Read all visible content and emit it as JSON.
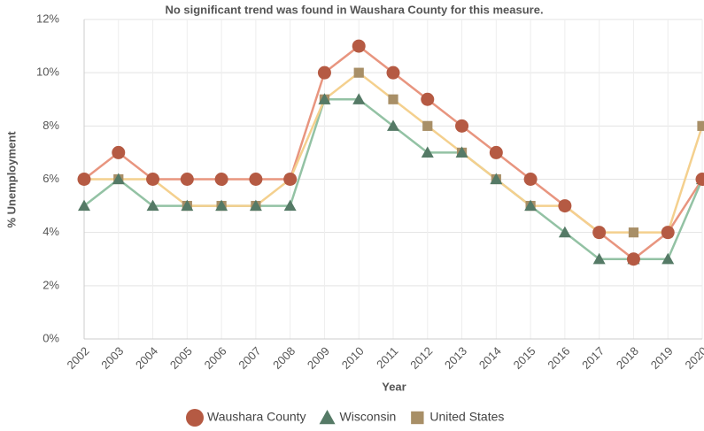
{
  "chart_data": {
    "type": "line",
    "title": "No significant trend was found in Waushara County for this measure.",
    "x_label": "Year",
    "y_label": "% Unemployment",
    "categories": [
      "2002",
      "2003",
      "2004",
      "2005",
      "2006",
      "2007",
      "2008",
      "2009",
      "2010",
      "2011",
      "2012",
      "2013",
      "2014",
      "2015",
      "2016",
      "2017",
      "2018",
      "2019",
      "2020"
    ],
    "series": [
      {
        "name": "Waushara County",
        "color": "#b55a43",
        "line_color": "#e8957f",
        "marker": "circle",
        "values": [
          6,
          7,
          6,
          6,
          6,
          6,
          6,
          10,
          11,
          10,
          9,
          8,
          7,
          6,
          5,
          4,
          3,
          4,
          6
        ]
      },
      {
        "name": "Wisconsin",
        "color": "#557a66",
        "line_color": "#93c2a4",
        "marker": "triangle",
        "values": [
          5,
          6,
          5,
          5,
          5,
          5,
          5,
          9,
          9,
          8,
          7,
          7,
          6,
          5,
          4,
          3,
          3,
          3,
          6
        ]
      },
      {
        "name": "United States",
        "color": "#a88f67",
        "line_color": "#f4d08e",
        "marker": "square",
        "values": [
          6,
          6,
          6,
          5,
          5,
          5,
          6,
          9,
          10,
          9,
          8,
          7,
          6,
          5,
          5,
          4,
          4,
          4,
          8
        ]
      }
    ],
    "ylim": [
      0,
      12
    ],
    "yticks": [
      {
        "value": 0,
        "label": "0%"
      },
      {
        "value": 2,
        "label": "2%"
      },
      {
        "value": 4,
        "label": "4%"
      },
      {
        "value": 6,
        "label": "6%"
      },
      {
        "value": 8,
        "label": "8%"
      },
      {
        "value": 10,
        "label": "10%"
      },
      {
        "value": 12,
        "label": "12%"
      }
    ],
    "grid": true,
    "legend": "bottom"
  }
}
